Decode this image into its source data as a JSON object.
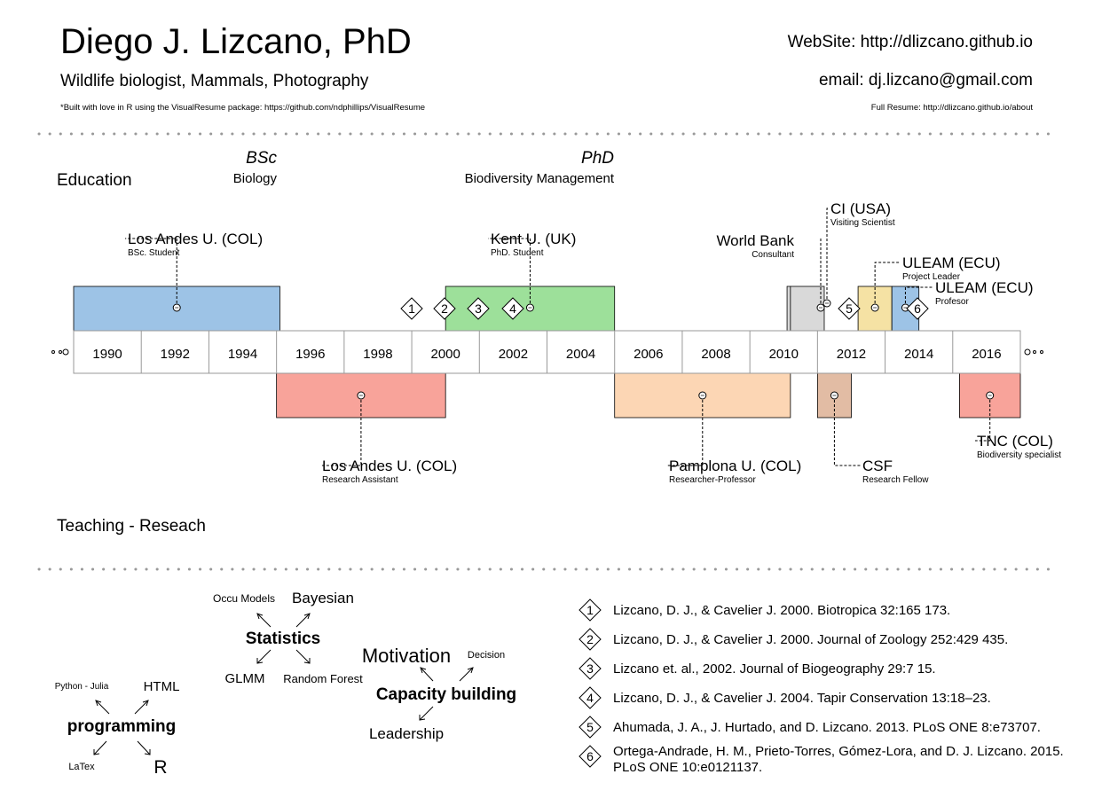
{
  "header": {
    "name": "Diego J. Lizcano, PhD",
    "subtitle": "Wildlife biologist, Mammals, Photography",
    "built_note": "*Built with love in R using the VisualResume package: https://github.com/ndphillips/VisualResume",
    "website": "WebSite: http://dlizcano.github.io",
    "email": "email: dj.lizcano@gmail.com",
    "full_resume": "Full Resume: http://dlizcano.github.io/about"
  },
  "education": {
    "label": "Education",
    "degrees": [
      {
        "title": "BSc",
        "field": "Biology"
      },
      {
        "title": "PhD",
        "field": "Biodiversity Management"
      }
    ]
  },
  "teaching_label": "Teaching - Reseach",
  "timeline": {
    "years": [
      "1990",
      "1992",
      "1994",
      "1996",
      "1998",
      "2000",
      "2002",
      "2004",
      "2006",
      "2008",
      "2010",
      "2012",
      "2014",
      "2016"
    ],
    "start_year": 1989,
    "end_year": 2017,
    "top_events": [
      {
        "title": "Los Andes U. (COL)",
        "sub": "BSc. Student",
        "start": 1989,
        "end": 1995.1,
        "color": "#9dc3e6"
      },
      {
        "title": "Kent U. (UK)",
        "sub": "PhD. Student",
        "start": 2000,
        "end": 2005,
        "color": "#9de09a"
      },
      {
        "title": "World Bank",
        "sub": "Consultant",
        "start": 2010.1,
        "end": 2010.2,
        "color": "#d9d9d9"
      },
      {
        "title": "CI (USA)",
        "sub": "Visiting Scientist",
        "start": 2010.2,
        "end": 2011.2,
        "color": "#d9d9d9"
      },
      {
        "title": "ULEAM (ECU)",
        "sub": "Project Leader",
        "start": 2012.2,
        "end": 2013.2,
        "color": "#f5e2a4"
      },
      {
        "title": "ULEAM (ECU)",
        "sub": "Profesor",
        "start": 2013.2,
        "end": 2014,
        "color": "#9dc3e6"
      }
    ],
    "bottom_events": [
      {
        "title": "Los Andes U. (COL)",
        "sub": "Research Assistant",
        "start": 1995,
        "end": 2000,
        "color": "#f8a39a"
      },
      {
        "title": "Pamplona U. (COL)",
        "sub": "Researcher-Professor",
        "start": 2005,
        "end": 2010.2,
        "color": "#fcd6b4"
      },
      {
        "title": "CSF",
        "sub": "Research Fellow",
        "start": 2011,
        "end": 2012,
        "color": "#e2bca4"
      },
      {
        "title": "TNC (COL)",
        "sub": "Biodiversity specialist",
        "start": 2015.2,
        "end": 2017,
        "color": "#f8a39a"
      }
    ],
    "markers": [
      "1",
      "2",
      "3",
      "4",
      "5",
      "6"
    ]
  },
  "skills": {
    "programming": {
      "center": "programming",
      "items": [
        "Python - Julia",
        "HTML",
        "LaTex",
        "R"
      ]
    },
    "statistics": {
      "center": "Statistics",
      "items": [
        "Occu Models",
        "Bayesian",
        "GLMM",
        "Random Forest"
      ]
    },
    "capacity": {
      "center": "Capacity building",
      "items": [
        "Motivation",
        "Decision",
        "Leadership"
      ]
    }
  },
  "publications": [
    {
      "num": "1",
      "text": "Lizcano, D. J., &  Cavelier J. 2000. Biotropica 32:165 173."
    },
    {
      "num": "2",
      "text": "Lizcano, D. J., &  Cavelier J. 2000. Journal of Zoology 252:429 435."
    },
    {
      "num": "3",
      "text": "Lizcano et. al., 2002. Journal of Biogeography 29:7 15."
    },
    {
      "num": "4",
      "text": "Lizcano, D. J., & Cavelier J. 2004. Tapir Conservation 13:18–23."
    },
    {
      "num": "5",
      "text": "Ahumada, J. A., J. Hurtado, and D. Lizcano. 2013. PLoS ONE 8:e73707."
    },
    {
      "num": "6",
      "text": "Ortega-Andrade, H. M., Prieto-Torres, Gómez-Lora, and D. J. Lizcano. 2015.",
      "text2": "PLoS ONE 10:e0121137."
    }
  ]
}
